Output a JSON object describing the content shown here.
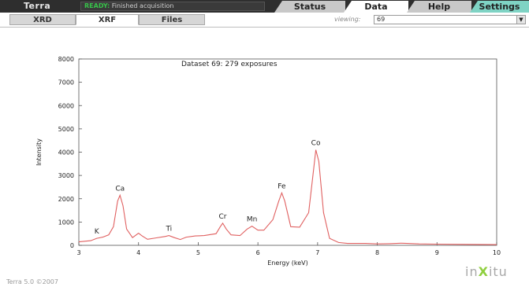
{
  "app": {
    "title": "Terra",
    "status_ready": "READY:",
    "status_message": "Finished acquisition",
    "version": "Terra 5.0 ©2007",
    "logo_left": "in",
    "logo_x": "X",
    "logo_right": "itu"
  },
  "main_tabs": [
    {
      "label": "Status"
    },
    {
      "label": "Data"
    },
    {
      "label": "Help"
    },
    {
      "label": "Settings"
    }
  ],
  "sub_tabs": [
    {
      "label": "XRD"
    },
    {
      "label": "XRF"
    },
    {
      "label": "Files"
    }
  ],
  "viewing": {
    "label": "viewing:",
    "value": "69"
  },
  "colors": {
    "spectrum": "#e06060",
    "accent_teal": "#7fd3c4",
    "ready_green": "#38c24a"
  },
  "chart_data": {
    "type": "line",
    "title": "Dataset 69: 279 exposures",
    "xlabel": "Energy (keV)",
    "ylabel": "Intensity",
    "xlim": [
      3,
      10
    ],
    "ylim": [
      0,
      8000
    ],
    "xticks": [
      3,
      4,
      5,
      6,
      7,
      8,
      9,
      10
    ],
    "yticks": [
      0,
      1000,
      2000,
      3000,
      4000,
      5000,
      6000,
      7000,
      8000
    ],
    "grid": false,
    "series": [
      {
        "x": [
          3.0,
          3.2,
          3.3,
          3.4,
          3.5,
          3.58,
          3.65,
          3.69,
          3.74,
          3.8,
          3.9,
          4.0,
          4.06,
          4.15,
          4.3,
          4.45,
          4.51,
          4.6,
          4.7,
          4.8,
          4.95,
          5.1,
          5.3,
          5.37,
          5.41,
          5.47,
          5.55,
          5.7,
          5.82,
          5.9,
          6.0,
          6.1,
          6.25,
          6.35,
          6.4,
          6.45,
          6.55,
          6.7,
          6.85,
          6.93,
          6.97,
          7.02,
          7.1,
          7.2,
          7.35,
          7.5,
          7.8,
          8.0,
          8.2,
          8.4,
          8.5,
          8.7,
          9.0,
          9.5,
          10.0
        ],
        "y": [
          150,
          200,
          300,
          350,
          450,
          800,
          1900,
          2150,
          1700,
          700,
          330,
          520,
          400,
          260,
          320,
          380,
          420,
          330,
          250,
          350,
          400,
          420,
          500,
          800,
          950,
          700,
          450,
          420,
          700,
          820,
          650,
          650,
          1100,
          1900,
          2250,
          1900,
          800,
          780,
          1400,
          3200,
          4100,
          3600,
          1400,
          300,
          120,
          80,
          80,
          60,
          70,
          90,
          80,
          60,
          50,
          40,
          30
        ]
      }
    ],
    "annotations": [
      {
        "text": "K",
        "x": 3.3,
        "y": 300
      },
      {
        "text": "Ca",
        "x": 3.69,
        "y": 2150
      },
      {
        "text": "Ti",
        "x": 4.51,
        "y": 420
      },
      {
        "text": "Cr",
        "x": 5.41,
        "y": 950
      },
      {
        "text": "Mn",
        "x": 5.9,
        "y": 820
      },
      {
        "text": "Fe",
        "x": 6.4,
        "y": 2250
      },
      {
        "text": "Co",
        "x": 6.97,
        "y": 4100
      }
    ]
  }
}
